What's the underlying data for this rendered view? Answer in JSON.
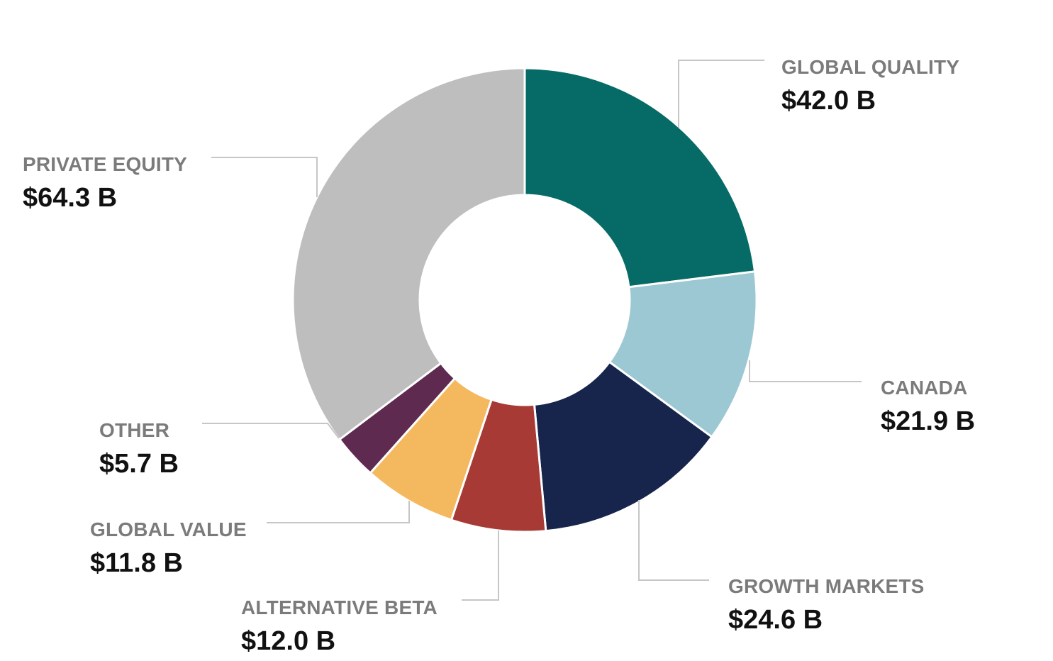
{
  "chart_data": {
    "type": "pie",
    "title": "",
    "slices": [
      {
        "label": "GLOBAL QUALITY",
        "value": 42.0,
        "value_label": "$42.0 B",
        "color": "#066b66"
      },
      {
        "label": "CANADA",
        "value": 21.9,
        "value_label": "$21.9 B",
        "color": "#9cc8d3"
      },
      {
        "label": "GROWTH MARKETS",
        "value": 24.6,
        "value_label": "$24.6 B",
        "color": "#17254c"
      },
      {
        "label": "ALTERNATIVE BETA",
        "value": 12.0,
        "value_label": "$12.0 B",
        "color": "#a73a35"
      },
      {
        "label": "GLOBAL VALUE",
        "value": 11.8,
        "value_label": "$11.8 B",
        "color": "#f4b95e"
      },
      {
        "label": "OTHER",
        "value": 5.7,
        "value_label": "$5.7 B",
        "color": "#5e2a50"
      },
      {
        "label": "PRIVATE EQUITY",
        "value": 64.3,
        "value_label": "$64.3 B",
        "color": "#bebebe"
      }
    ],
    "units": "$ billions",
    "start_angle": "12 o'clock",
    "direction": "clockwise",
    "legend": "none (direct labels with leader lines)"
  }
}
